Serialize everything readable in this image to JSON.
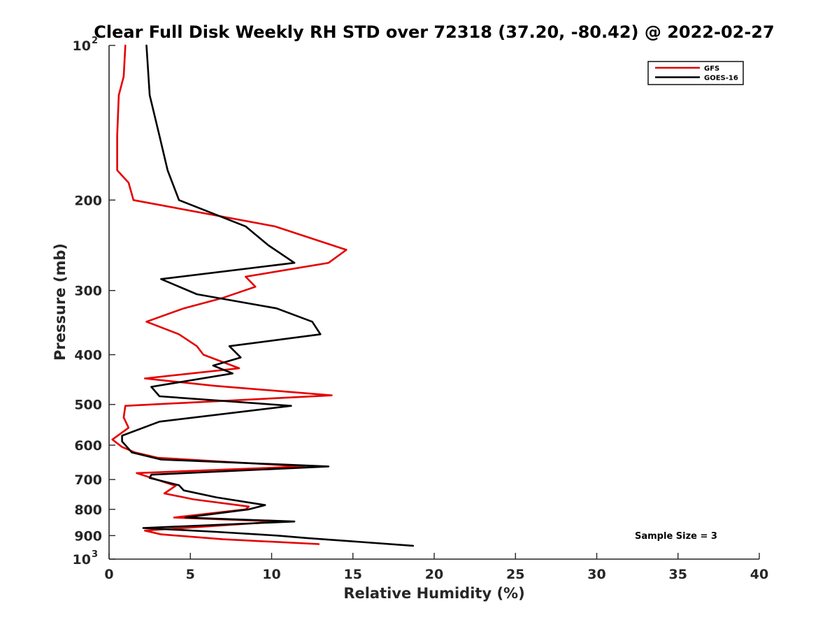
{
  "chart_data": {
    "type": "line",
    "title": "Clear Full Disk Weekly RH STD over 72318 (37.20, -80.42) @ 2022-02-27",
    "xlabel": "Relative Humidity (%)",
    "ylabel": "Pressure (mb)",
    "xlim": [
      0,
      40
    ],
    "ylim": [
      100,
      1000
    ],
    "y_scale": "log",
    "y_reversed": true,
    "x_ticks": [
      0,
      5,
      10,
      15,
      20,
      25,
      30,
      35,
      40
    ],
    "y_ticks": [
      {
        "value": 100,
        "base": "10",
        "exp": "2"
      },
      {
        "value": 200,
        "label": "200"
      },
      {
        "value": 300,
        "label": "300"
      },
      {
        "value": 400,
        "label": "400"
      },
      {
        "value": 500,
        "label": "500"
      },
      {
        "value": 600,
        "label": "600"
      },
      {
        "value": 700,
        "label": "700"
      },
      {
        "value": 800,
        "label": "800"
      },
      {
        "value": 900,
        "label": "900"
      },
      {
        "value": 1000,
        "base": "10",
        "exp": "3"
      }
    ],
    "grid": false,
    "legend_position": "top-right",
    "annotation": "Sample Size = 3",
    "series": [
      {
        "name": "GFS",
        "color": "#e50000",
        "points": [
          [
            1.0,
            100
          ],
          [
            0.9,
            115
          ],
          [
            0.6,
            125
          ],
          [
            0.5,
            150
          ],
          [
            0.5,
            175
          ],
          [
            1.2,
            185
          ],
          [
            1.5,
            200
          ],
          [
            10.2,
            225
          ],
          [
            14.6,
            250
          ],
          [
            13.5,
            265
          ],
          [
            8.4,
            282
          ],
          [
            9.0,
            295
          ],
          [
            7.0,
            310
          ],
          [
            4.6,
            325
          ],
          [
            2.3,
            345
          ],
          [
            4.3,
            365
          ],
          [
            5.4,
            385
          ],
          [
            5.8,
            400
          ],
          [
            8.0,
            425
          ],
          [
            2.2,
            445
          ],
          [
            6.5,
            460
          ],
          [
            13.7,
            480
          ],
          [
            1.0,
            503
          ],
          [
            0.9,
            530
          ],
          [
            1.2,
            555
          ],
          [
            0.2,
            585
          ],
          [
            0.8,
            605
          ],
          [
            1.6,
            620
          ],
          [
            3.0,
            635
          ],
          [
            12.0,
            660
          ],
          [
            1.7,
            680
          ],
          [
            4.1,
            720
          ],
          [
            3.4,
            745
          ],
          [
            5.2,
            765
          ],
          [
            8.6,
            790
          ],
          [
            8.4,
            800
          ],
          [
            4.0,
            830
          ],
          [
            10.5,
            845
          ],
          [
            2.2,
            880
          ],
          [
            3.2,
            895
          ],
          [
            7.0,
            915
          ],
          [
            12.9,
            935
          ]
        ]
      },
      {
        "name": "GOES-16",
        "color": "#000000",
        "points": [
          [
            2.3,
            100
          ],
          [
            2.5,
            125
          ],
          [
            3.1,
            150
          ],
          [
            3.6,
            175
          ],
          [
            4.3,
            200
          ],
          [
            8.4,
            225
          ],
          [
            9.8,
            245
          ],
          [
            11.4,
            265
          ],
          [
            3.2,
            285
          ],
          [
            5.4,
            305
          ],
          [
            10.3,
            325
          ],
          [
            12.5,
            345
          ],
          [
            13.0,
            365
          ],
          [
            7.4,
            385
          ],
          [
            8.1,
            405
          ],
          [
            6.4,
            420
          ],
          [
            7.6,
            435
          ],
          [
            2.6,
            462
          ],
          [
            3.1,
            482
          ],
          [
            11.2,
            503
          ],
          [
            3.1,
            540
          ],
          [
            0.8,
            575
          ],
          [
            0.8,
            590
          ],
          [
            1.4,
            620
          ],
          [
            3.2,
            640
          ],
          [
            13.5,
            660
          ],
          [
            2.6,
            685
          ],
          [
            2.5,
            695
          ],
          [
            4.3,
            718
          ],
          [
            4.6,
            735
          ],
          [
            6.6,
            758
          ],
          [
            9.6,
            785
          ],
          [
            8.6,
            800
          ],
          [
            4.7,
            830
          ],
          [
            11.4,
            845
          ],
          [
            2.1,
            870
          ],
          [
            6.6,
            885
          ],
          [
            10.4,
            900
          ],
          [
            12.2,
            910
          ],
          [
            18.7,
            942
          ]
        ]
      }
    ]
  }
}
